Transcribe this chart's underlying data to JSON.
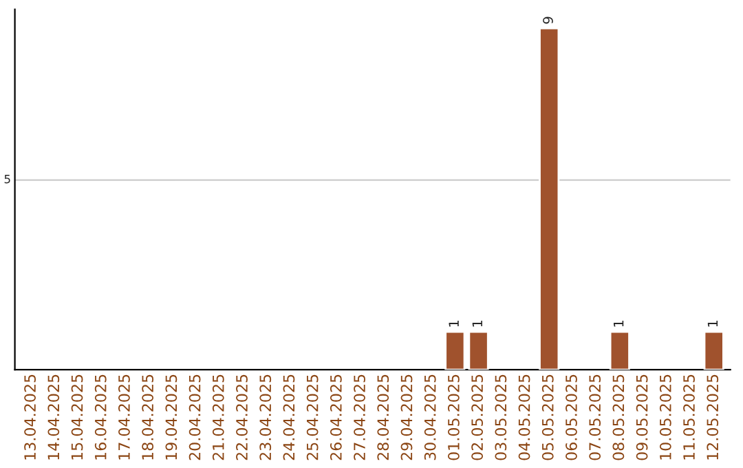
{
  "chart_data": {
    "type": "bar",
    "categories": [
      "13.04.2025",
      "14.04.2025",
      "15.04.2025",
      "16.04.2025",
      "17.04.2025",
      "18.04.2025",
      "19.04.2025",
      "20.04.2025",
      "21.04.2025",
      "22.04.2025",
      "23.04.2025",
      "24.04.2025",
      "25.04.2025",
      "26.04.2025",
      "27.04.2025",
      "28.04.2025",
      "29.04.2025",
      "30.04.2025",
      "01.05.2025",
      "02.05.2025",
      "03.05.2025",
      "04.05.2025",
      "05.05.2025",
      "06.05.2025",
      "07.05.2025",
      "08.05.2025",
      "09.05.2025",
      "10.05.2025",
      "11.05.2025",
      "12.05.2025"
    ],
    "values": [
      null,
      null,
      null,
      null,
      null,
      null,
      null,
      null,
      null,
      null,
      null,
      null,
      null,
      null,
      null,
      null,
      null,
      null,
      1,
      1,
      null,
      null,
      9,
      null,
      null,
      1,
      null,
      null,
      null,
      1
    ],
    "data_labels": true,
    "color": "#a0522d",
    "ylim": [
      0,
      9.5
    ],
    "yticks": [
      5
    ],
    "grid": "y",
    "legend": false
  }
}
